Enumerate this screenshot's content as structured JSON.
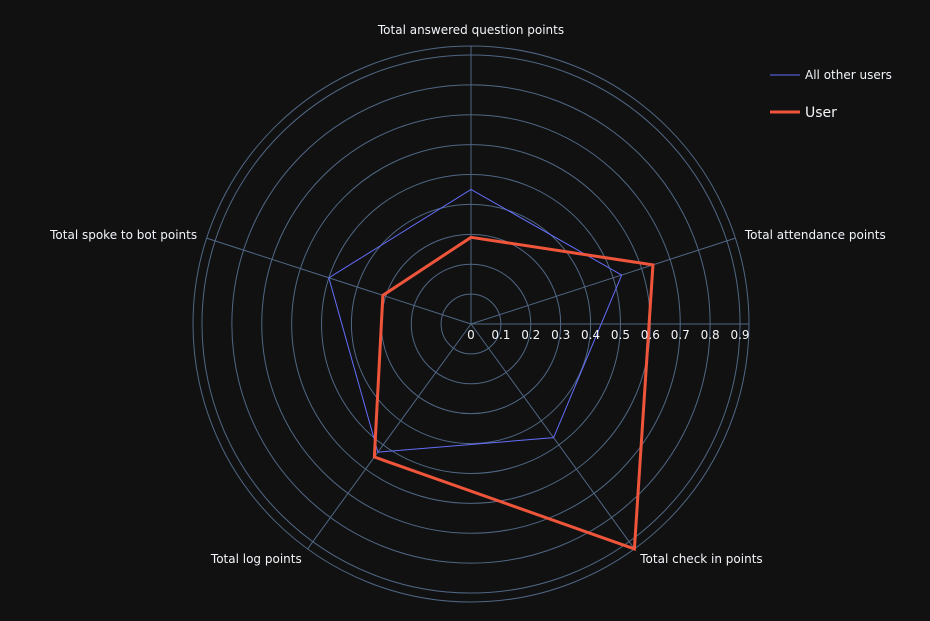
{
  "chart_data": {
    "type": "radar",
    "axes": [
      "Total answered question points",
      "Total attendance points",
      "Total check in points",
      "Total log points",
      "Total spoke to bot points"
    ],
    "radial_ticks": [
      "0",
      "0.1",
      "0.2",
      "0.3",
      "0.4",
      "0.5",
      "0.6",
      "0.7",
      "0.8",
      "0.9"
    ],
    "radial_range": [
      0,
      0.93
    ],
    "grid": true,
    "legend_position": "top-right",
    "series": [
      {
        "name": "All other users",
        "values": [
          0.45,
          0.53,
          0.47,
          0.53,
          0.5
        ],
        "color": "#636efa"
      },
      {
        "name": "User",
        "values": [
          0.29,
          0.64,
          0.93,
          0.55,
          0.31
        ],
        "color": "#ef553b"
      }
    ]
  },
  "colors": {
    "background": "#111111",
    "grid": "#506784",
    "text": "#f2f5fa"
  }
}
